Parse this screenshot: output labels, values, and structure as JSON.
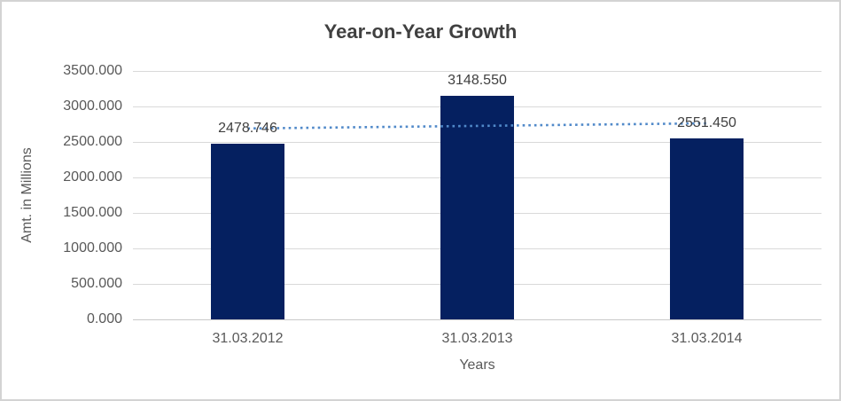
{
  "chart_data": {
    "type": "bar",
    "title": "Year-on-Year Growth",
    "categories": [
      "31.03.2012",
      "31.03.2013",
      "31.03.2014"
    ],
    "values": [
      2478.746,
      3148.55,
      2551.45
    ],
    "data_labels": [
      "2478.746",
      "3148.550",
      "2551.450"
    ],
    "xlabel": "Years",
    "ylabel": "Amt. in Millions",
    "ylim": [
      0,
      3500
    ],
    "ytick_interval": 500,
    "ytick_labels": [
      "0.000",
      "500.000",
      "1000.000",
      "1500.000",
      "2000.000",
      "2500.000",
      "3000.000",
      "3500.000"
    ],
    "grid": true,
    "legend": "none",
    "trendline": {
      "type": "linear",
      "style": "dotted"
    },
    "colors": {
      "bar": "#052060",
      "trendline": "#5089c9",
      "gridline": "#d9d9d9",
      "axis_line": "#c9c9c9",
      "title_text": "#404040",
      "tick_text": "#595959",
      "data_label_text": "#404040",
      "chart_border": "#d3d3d3",
      "background": "#ffffff"
    }
  }
}
